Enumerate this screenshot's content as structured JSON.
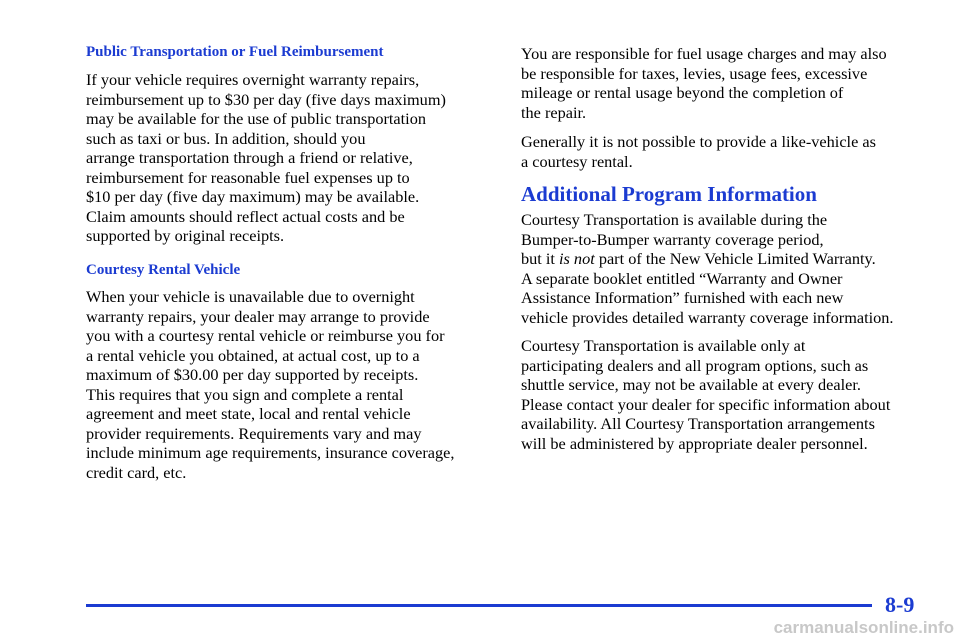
{
  "left": {
    "heading1": "Public Transportation or Fuel Reimbursement",
    "paragraph1": [
      "If your vehicle requires overnight warranty repairs,",
      "reimbursement up to $30 per day (five days maximum)",
      "may be available for the use of public transportation",
      "such as taxi or bus. In addition, should you",
      "arrange transportation through a friend or relative,",
      "reimbursement for reasonable fuel expenses up to",
      "$10 per day (five day maximum) may be available.",
      "Claim amounts should reflect actual costs and be",
      "supported by original receipts."
    ],
    "heading2": "Courtesy Rental Vehicle",
    "paragraph2": [
      "When your vehicle is unavailable due to overnight",
      "warranty repairs, your dealer may arrange to provide",
      "you with a courtesy rental vehicle or reimburse you for",
      "a rental vehicle you obtained, at actual cost, up to a",
      "maximum of $30.00 per day supported by receipts.",
      "This requires that you sign and complete a rental",
      "agreement and meet state, local and rental vehicle",
      "provider requirements. Requirements vary and may",
      "include minimum age requirements, insurance coverage,",
      "credit card, etc."
    ]
  },
  "right": {
    "paragraph1": [
      "You are responsible for fuel usage charges and may also",
      "be responsible for taxes, levies, usage fees, excessive",
      "mileage or rental usage beyond the completion of",
      "the repair."
    ],
    "paragraph2": [
      "Generally it is not possible to provide a like-vehicle as",
      "a courtesy rental."
    ],
    "heading": "Additional Program Information",
    "paragraph3": [
      "Courtesy Transportation is available during the",
      "Bumper-to-Bumper warranty coverage period,",
      {
        "before": "but it ",
        "italic": "is not",
        "after": " part of the New Vehicle Limited Warranty."
      },
      "A separate booklet entitled “Warranty and Owner",
      "Assistance Information” furnished with each new",
      "vehicle provides detailed warranty coverage information."
    ],
    "paragraph4": [
      "Courtesy Transportation is available only at",
      "participating dealers and all program options, such as",
      "shuttle service, may not be available at every dealer.",
      "Please contact your dealer for specific information about",
      "availability. All Courtesy Transportation arrangements",
      "will be administered by appropriate dealer personnel."
    ]
  },
  "footer": {
    "page_number": "8-9",
    "watermark": "carmanualsonline.info"
  }
}
